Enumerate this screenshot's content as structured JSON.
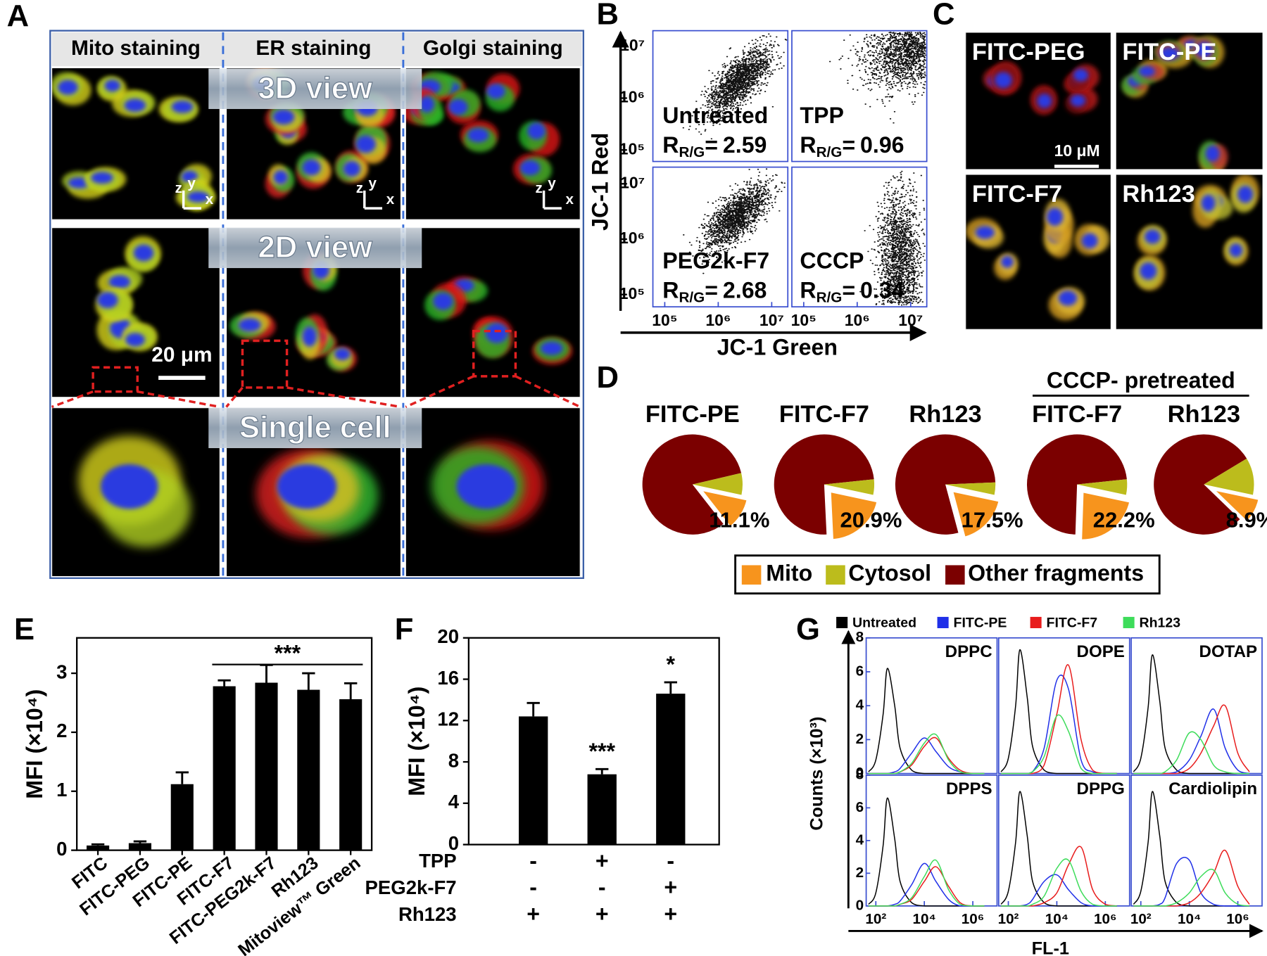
{
  "panel_a": {
    "label": "A",
    "columns": [
      "Mito staining",
      "ER staining",
      "Golgi staining"
    ],
    "views": [
      "3D view",
      "2D view",
      "Single cell"
    ],
    "axis_letters": [
      "z",
      "y",
      "x"
    ],
    "scale_bar": "20 μm"
  },
  "panel_b": {
    "label": "B",
    "y_label": "JC-1 Red",
    "x_label": "JC-1 Green",
    "ratio_symbol": "R",
    "ratio_subscript": "R/G",
    "ratio_sign": "=",
    "xscale": "log",
    "yscale": "log",
    "xlim": [
      60000,
      20000000
    ],
    "ylim": [
      60000,
      20000000
    ],
    "xticks": [
      {
        "value": 100000,
        "label": "10⁵"
      },
      {
        "value": 1000000,
        "label": "10⁶"
      },
      {
        "value": 10000000,
        "label": "10⁷"
      }
    ],
    "yticks": [
      {
        "value": 100000,
        "label": "10⁵"
      },
      {
        "value": 1000000,
        "label": "10⁶"
      },
      {
        "value": 10000000,
        "label": "10⁷"
      }
    ],
    "quadrants": [
      {
        "name": "Untreated",
        "ratio": 2.59
      },
      {
        "name": "TPP",
        "ratio": 0.96
      },
      {
        "name": "PEG2k-F7",
        "ratio": 2.68
      },
      {
        "name": "CCCP",
        "ratio": 0.34
      }
    ]
  },
  "panel_c": {
    "label": "C",
    "images": [
      "FITC-PEG",
      "FITC-PE",
      "FITC-F7",
      "Rh123"
    ],
    "scale_bar": "10 μM"
  },
  "chart_data": [
    {
      "type": "pie",
      "label": "D",
      "group_title": "CCCP- pretreated",
      "labels": [
        "Mito",
        "Cytosol",
        "Other fragments"
      ],
      "colors": [
        "#f7941d",
        "#bcbc1c",
        "#7b0000"
      ],
      "pies": [
        {
          "title": "FITC-PE",
          "values": [
            11.1,
            7,
            81.9
          ],
          "value_label": "11.1%"
        },
        {
          "title": "FITC-F7",
          "values": [
            20.9,
            5,
            74.1
          ],
          "value_label": "20.9%"
        },
        {
          "title": "Rh123",
          "values": [
            17.5,
            4,
            78.5
          ],
          "value_label": "17.5%"
        },
        {
          "title": "FITC-F7",
          "values": [
            22.2,
            5,
            72.8
          ],
          "value_label": "22.2%"
        },
        {
          "title": "Rh123",
          "values": [
            8.9,
            12,
            79.1
          ],
          "value_label": "8.9%"
        }
      ]
    },
    {
      "type": "bar",
      "label": "E",
      "y_label": "MFI (×10⁴)",
      "categories": [
        "FITC",
        "FITC-PEG",
        "FITC-PE",
        "FITC-F7",
        "FITC-PEG2k-F7",
        "Rh123",
        "Mitoview™ Green"
      ],
      "values": [
        0.08,
        0.12,
        1.12,
        2.78,
        2.84,
        2.72,
        2.56
      ],
      "errors": [
        0.02,
        0.03,
        0.2,
        0.1,
        0.3,
        0.28,
        0.27
      ],
      "color": "#000000",
      "ylim": [
        0,
        3.6
      ],
      "yticks": [
        0,
        1,
        2,
        3
      ],
      "significance": "***"
    },
    {
      "type": "bar",
      "label": "F",
      "y_label": "MFI (×10⁴)",
      "values": [
        12.4,
        6.8,
        14.6
      ],
      "errors": [
        1.3,
        0.5,
        1.1
      ],
      "annotations": [
        null,
        "***",
        "*"
      ],
      "color": "#000000",
      "ylim": [
        0,
        20
      ],
      "yticks": [
        0,
        4,
        8,
        12,
        16,
        20
      ],
      "conditions": [
        {
          "name": "TPP",
          "signs": [
            "-",
            "+",
            "-"
          ]
        },
        {
          "name": "PEG2k-F7",
          "signs": [
            "-",
            "-",
            "+"
          ]
        },
        {
          "name": "Rh123",
          "signs": [
            "+",
            "+",
            "+"
          ]
        }
      ]
    },
    {
      "type": "line",
      "label": "G",
      "y_label": "Counts (×10³)",
      "x_label": "FL-1",
      "xscale": "log",
      "xlim": [
        40,
        10000000
      ],
      "xticks": [
        {
          "value": 100,
          "label": "10²"
        },
        {
          "value": 10000,
          "label": "10⁴"
        },
        {
          "value": 1000000,
          "label": "10⁶"
        }
      ],
      "ylim": [
        0,
        8
      ],
      "yticks": [
        0,
        2,
        4,
        6,
        8
      ],
      "x": [
        50,
        100,
        200,
        300,
        600,
        1000,
        3000,
        10000,
        30000,
        100000,
        300000,
        1000000,
        3000000
      ],
      "series": [
        {
          "name": "Untreated",
          "color": "#000000"
        },
        {
          "name": "FITC-PE",
          "color": "#1f2fe8"
        },
        {
          "name": "FITC-F7",
          "color": "#e81c1c"
        },
        {
          "name": "Rh123",
          "color": "#3ddc5a"
        }
      ],
      "panels": [
        {
          "title": "DPPC",
          "values": [
            [
              0.1,
              0.8,
              3.5,
              6.2,
              4,
              1.5,
              0.2,
              0,
              0,
              0,
              0,
              0,
              0
            ],
            [
              0,
              0,
              0,
              0,
              0.1,
              0.3,
              1.2,
              2.1,
              1.3,
              0.4,
              0.1,
              0,
              0
            ],
            [
              0,
              0,
              0,
              0,
              0,
              0.1,
              0.5,
              1.6,
              2.1,
              0.9,
              0.2,
              0,
              0
            ],
            [
              0,
              0,
              0,
              0,
              0,
              0.1,
              0.6,
              1.8,
              2.3,
              0.8,
              0.1,
              0,
              0
            ]
          ]
        },
        {
          "title": "DOPE",
          "values": [
            [
              0.1,
              0.9,
              4,
              7.3,
              4.5,
              1.6,
              0.2,
              0,
              0,
              0,
              0,
              0,
              0
            ],
            [
              0,
              0,
              0,
              0,
              0,
              0.1,
              1.5,
              5.5,
              5,
              0.8,
              0.1,
              0,
              0
            ],
            [
              0,
              0,
              0,
              0,
              0,
              0,
              0.5,
              3.5,
              6.4,
              2,
              0.2,
              0,
              0
            ],
            [
              0,
              0,
              0,
              0,
              0,
              0.1,
              1,
              3.4,
              2.5,
              0.3,
              0,
              0,
              0
            ]
          ]
        },
        {
          "title": "DOTAP",
          "values": [
            [
              0.1,
              0.9,
              3.9,
              7,
              4.3,
              1.5,
              0.2,
              0,
              0,
              0,
              0,
              0,
              0
            ],
            [
              0,
              0,
              0,
              0,
              0,
              0,
              0.1,
              0.8,
              2.2,
              3.8,
              1.5,
              0.2,
              0
            ],
            [
              0,
              0,
              0,
              0,
              0,
              0,
              0,
              0.3,
              1.2,
              2.8,
              4,
              1.2,
              0.1
            ],
            [
              0,
              0,
              0,
              0,
              0,
              0.1,
              0.8,
              2.4,
              2,
              0.5,
              0.1,
              0,
              0
            ]
          ]
        },
        {
          "title": "DPPS",
          "values": [
            [
              0.1,
              0.8,
              3.7,
              6.6,
              4.1,
              1.5,
              0.2,
              0,
              0,
              0,
              0,
              0,
              0
            ],
            [
              0,
              0,
              0,
              0,
              0.1,
              0.3,
              1.3,
              2.6,
              1.5,
              0.4,
              0,
              0,
              0
            ],
            [
              0,
              0,
              0,
              0,
              0,
              0.1,
              0.4,
              1.5,
              2.4,
              1.2,
              0.2,
              0,
              0
            ],
            [
              0,
              0,
              0,
              0,
              0,
              0.1,
              0.5,
              1.8,
              2.8,
              1,
              0.1,
              0,
              0
            ]
          ]
        },
        {
          "title": "DPPG",
          "values": [
            [
              0.1,
              0.9,
              3.9,
              7,
              4.3,
              1.5,
              0.2,
              0,
              0,
              0,
              0,
              0,
              0
            ],
            [
              0,
              0,
              0,
              0,
              0.1,
              0.4,
              1.5,
              1.9,
              1,
              0.2,
              0,
              0,
              0
            ],
            [
              0,
              0,
              0,
              0,
              0,
              0,
              0.2,
              0.8,
              2.5,
              3.6,
              1,
              0.1,
              0
            ],
            [
              0,
              0,
              0,
              0,
              0,
              0.1,
              0.6,
              2.3,
              2.8,
              0.9,
              0.1,
              0,
              0
            ]
          ]
        },
        {
          "title": "Cardiolipin",
          "values": [
            [
              0.1,
              0.9,
              3.9,
              7,
              4.3,
              1.5,
              0.2,
              0,
              0,
              0,
              0,
              0,
              0
            ],
            [
              0,
              0,
              0,
              0,
              0.1,
              0.5,
              2.6,
              2.8,
              0.8,
              0.1,
              0,
              0,
              0
            ],
            [
              0,
              0,
              0,
              0,
              0,
              0,
              0,
              0.2,
              0.8,
              2,
              3.4,
              1.2,
              0.1
            ],
            [
              0,
              0,
              0,
              0,
              0,
              0,
              0.2,
              0.8,
              1.8,
              2.2,
              0.8,
              0.1,
              0
            ]
          ]
        }
      ]
    }
  ]
}
